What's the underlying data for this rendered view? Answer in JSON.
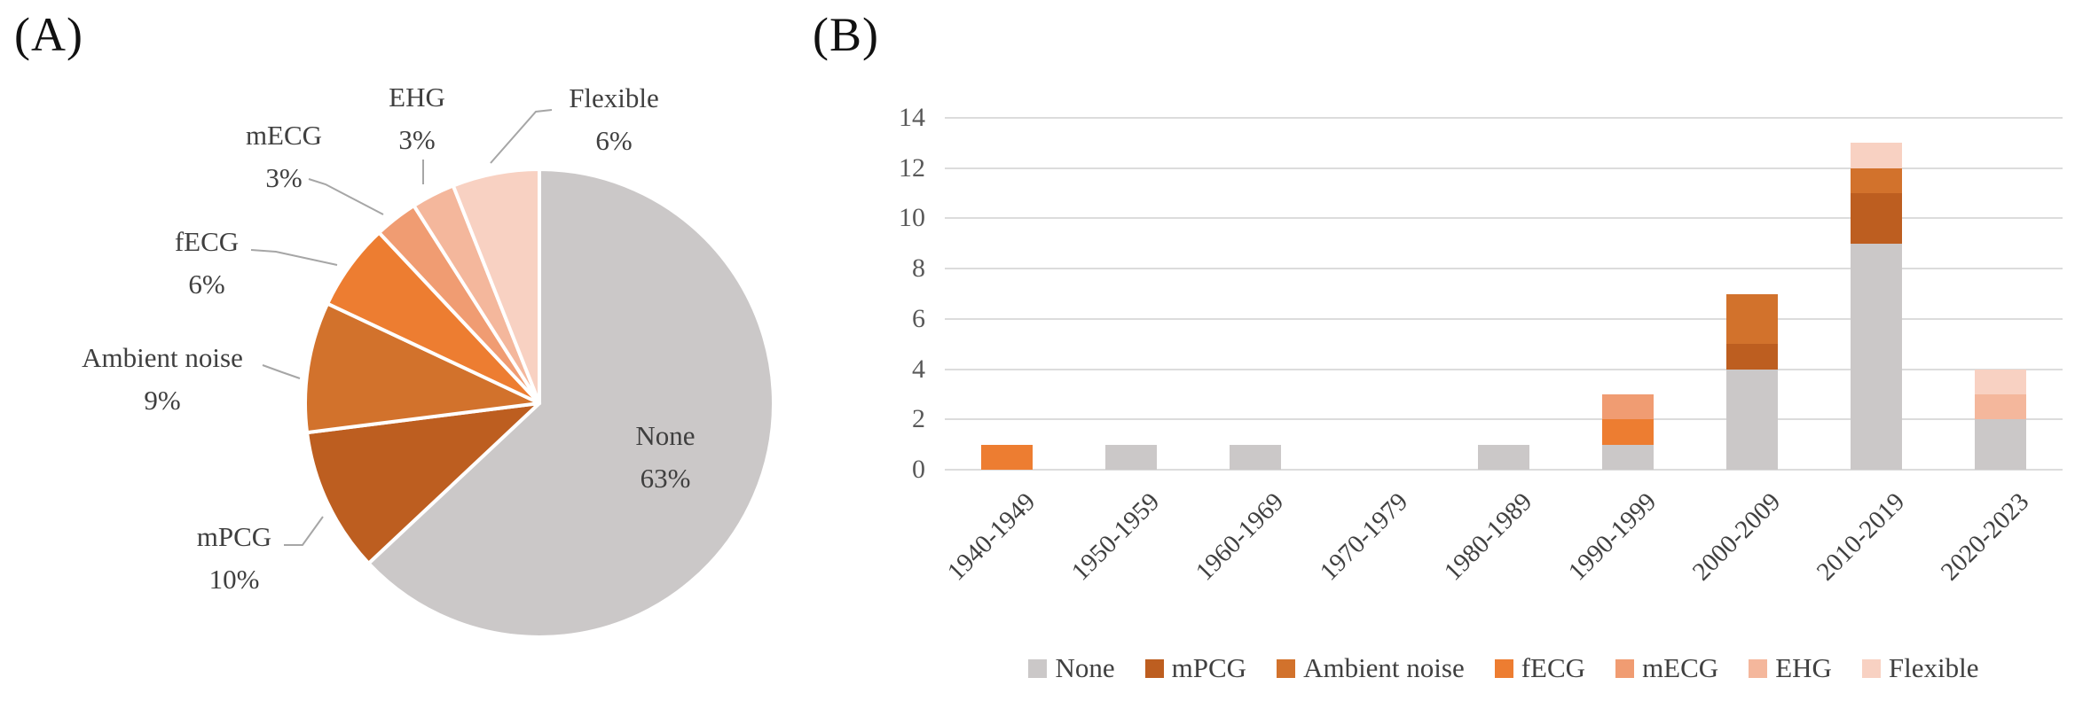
{
  "figure": {
    "panelA_label": "(A)",
    "panelB_label": "(B)"
  },
  "chart_data": [
    {
      "type": "pie",
      "panel": "A",
      "direction": "clockwise",
      "start_angle_deg": 0,
      "slices": [
        {
          "label": "None",
          "value": 63,
          "pct_text": "63%",
          "color": "#cbc8c8",
          "label_inside": true
        },
        {
          "label": "mPCG",
          "value": 10,
          "pct_text": "10%",
          "color": "#bd5e20"
        },
        {
          "label": "Ambient noise",
          "value": 9,
          "pct_text": "9%",
          "color": "#d2722c"
        },
        {
          "label": "fECG",
          "value": 6,
          "pct_text": "6%",
          "color": "#ed7d31"
        },
        {
          "label": "mECG",
          "value": 3,
          "pct_text": "3%",
          "color": "#f09c72"
        },
        {
          "label": "EHG",
          "value": 3,
          "pct_text": "3%",
          "color": "#f4b79c"
        },
        {
          "label": "Flexible",
          "value": 6,
          "pct_text": "6%",
          "color": "#f8d1c2"
        }
      ]
    },
    {
      "type": "bar",
      "panel": "B",
      "stacked": true,
      "grid": true,
      "legend_position": "bottom",
      "categories": [
        "1940-1949",
        "1950-1959",
        "1960-1969",
        "1970-1979",
        "1980-1989",
        "1990-1999",
        "2000-2009",
        "2010-2019",
        "2020-2023"
      ],
      "series": [
        {
          "name": "None",
          "color": "#cbc8c8",
          "values": [
            0,
            1,
            1,
            0,
            1,
            1,
            4,
            9,
            2
          ]
        },
        {
          "name": "mPCG",
          "color": "#bd5e20",
          "values": [
            0,
            0,
            0,
            0,
            0,
            0,
            1,
            2,
            0
          ]
        },
        {
          "name": "Ambient noise",
          "color": "#d2722c",
          "values": [
            0,
            0,
            0,
            0,
            0,
            0,
            2,
            1,
            0
          ]
        },
        {
          "name": "fECG",
          "color": "#ed7d31",
          "values": [
            1,
            0,
            0,
            0,
            0,
            1,
            0,
            0,
            0
          ]
        },
        {
          "name": "mECG",
          "color": "#f09c72",
          "values": [
            0,
            0,
            0,
            0,
            0,
            1,
            0,
            0,
            0
          ]
        },
        {
          "name": "EHG",
          "color": "#f4b79c",
          "values": [
            0,
            0,
            0,
            0,
            0,
            0,
            0,
            0,
            1
          ]
        },
        {
          "name": "Flexible",
          "color": "#f8d1c2",
          "values": [
            0,
            0,
            0,
            0,
            0,
            0,
            0,
            1,
            1
          ]
        }
      ],
      "y_axis": {
        "min": 0,
        "max": 14,
        "tick_step": 2,
        "ticks": [
          0,
          2,
          4,
          6,
          8,
          10,
          12,
          14
        ]
      }
    }
  ]
}
